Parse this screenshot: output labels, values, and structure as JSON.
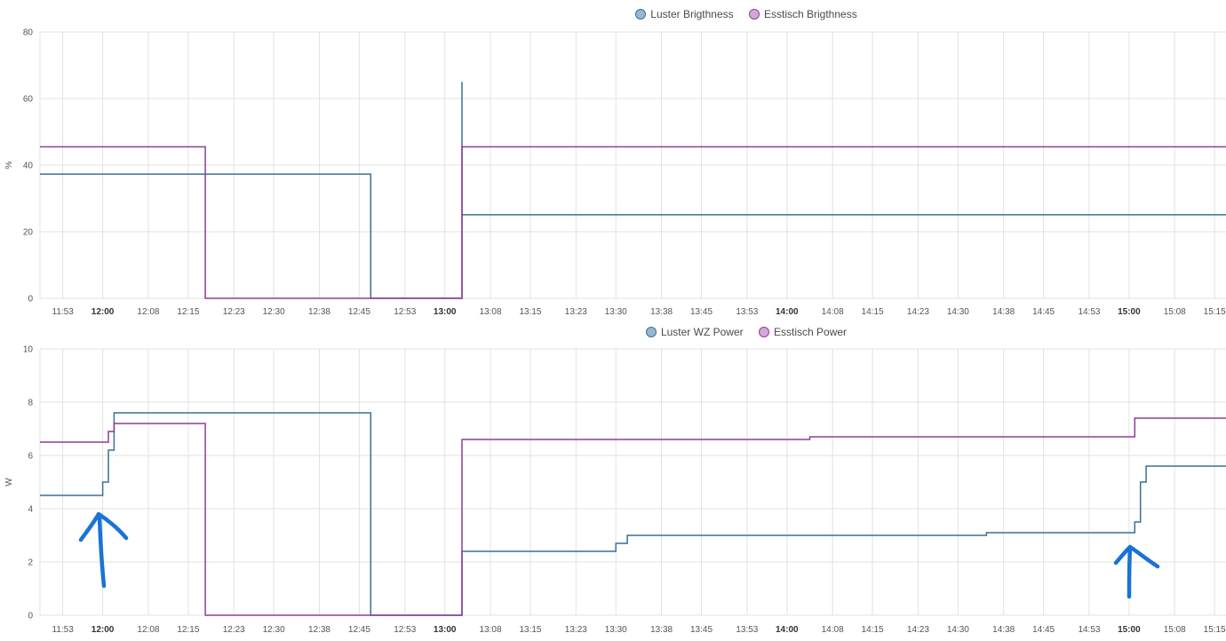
{
  "charts": [
    {
      "type": "line",
      "step": true,
      "ylabel": "%",
      "ylim": [
        0,
        80
      ],
      "yticks": [
        0,
        20,
        40,
        60,
        80
      ],
      "x_range": [
        "11:49",
        "15:17"
      ],
      "x_tick_labels": [
        "11:53",
        "12:00",
        "12:08",
        "12:15",
        "12:23",
        "12:30",
        "12:38",
        "12:45",
        "12:53",
        "13:00",
        "13:08",
        "13:15",
        "13:23",
        "13:30",
        "13:38",
        "13:45",
        "13:53",
        "14:00",
        "14:08",
        "14:15",
        "14:23",
        "14:30",
        "14:38",
        "14:45",
        "14:53",
        "15:00",
        "15:08",
        "15:15"
      ],
      "bold_ticks": [
        "12:00",
        "13:00",
        "14:00",
        "15:00"
      ],
      "legend": "top-center",
      "grid": true,
      "series": [
        {
          "name": "Luster Brigthness",
          "color": "#3b6f95",
          "fill": "#9ab7cf",
          "points": [
            [
              "11:49",
              37.3
            ],
            [
              "12:47",
              37.3
            ],
            [
              "12:47",
              0
            ],
            [
              "13:03",
              0
            ],
            [
              "13:03",
              65
            ],
            [
              "13:03",
              25.1
            ],
            [
              "15:17",
              25.1
            ]
          ]
        },
        {
          "name": "Esstisch Brigthness",
          "color": "#8e3d96",
          "fill": "#d3a8d9",
          "points": [
            [
              "11:49",
              45.5
            ],
            [
              "12:18",
              45.5
            ],
            [
              "12:18",
              0
            ],
            [
              "13:03",
              0
            ],
            [
              "13:03",
              45.5
            ],
            [
              "15:17",
              45.5
            ]
          ]
        }
      ]
    },
    {
      "type": "line",
      "step": true,
      "ylabel": "W",
      "ylim": [
        0,
        10
      ],
      "yticks": [
        0,
        2,
        4,
        6,
        8,
        10
      ],
      "x_range": [
        "11:49",
        "15:17"
      ],
      "x_tick_labels": [
        "11:53",
        "12:00",
        "12:08",
        "12:15",
        "12:23",
        "12:30",
        "12:38",
        "12:45",
        "12:53",
        "13:00",
        "13:08",
        "13:15",
        "13:23",
        "13:30",
        "13:38",
        "13:45",
        "13:53",
        "14:00",
        "14:08",
        "14:15",
        "14:23",
        "14:30",
        "14:38",
        "14:45",
        "14:53",
        "15:00",
        "15:08",
        "15:15"
      ],
      "bold_ticks": [
        "12:00",
        "13:00",
        "14:00",
        "15:00"
      ],
      "legend": "top-center",
      "grid": true,
      "series": [
        {
          "name": "Luster WZ Power",
          "color": "#3b6f95",
          "fill": "#9ab7cf",
          "points": [
            [
              "11:49",
              4.5
            ],
            [
              "12:00",
              4.5
            ],
            [
              "12:00",
              5.0
            ],
            [
              "12:01",
              5.0
            ],
            [
              "12:01",
              5.6
            ],
            [
              "12:01",
              6.2
            ],
            [
              "12:02",
              6.2
            ],
            [
              "12:02",
              6.9
            ],
            [
              "12:02",
              7.6
            ],
            [
              "12:47",
              7.6
            ],
            [
              "12:47",
              0
            ],
            [
              "13:03",
              0
            ],
            [
              "13:03",
              2.4
            ],
            [
              "13:30",
              2.4
            ],
            [
              "13:30",
              2.7
            ],
            [
              "13:32",
              2.7
            ],
            [
              "13:32",
              3.0
            ],
            [
              "14:35",
              3.0
            ],
            [
              "14:35",
              3.1
            ],
            [
              "15:01",
              3.1
            ],
            [
              "15:01",
              3.5
            ],
            [
              "15:02",
              3.5
            ],
            [
              "15:02",
              4.0
            ],
            [
              "15:02",
              4.4
            ],
            [
              "15:02",
              5.0
            ],
            [
              "15:03",
              5.0
            ],
            [
              "15:03",
              5.6
            ],
            [
              "15:17",
              5.6
            ]
          ]
        },
        {
          "name": "Esstisch Power",
          "color": "#8e3d96",
          "fill": "#d3a8d9",
          "points": [
            [
              "11:49",
              6.5
            ],
            [
              "12:01",
              6.5
            ],
            [
              "12:01",
              6.9
            ],
            [
              "12:02",
              6.9
            ],
            [
              "12:02",
              7.2
            ],
            [
              "12:18",
              7.2
            ],
            [
              "12:18",
              4.6
            ],
            [
              "12:18",
              0
            ],
            [
              "13:03",
              0
            ],
            [
              "13:03",
              3.3
            ],
            [
              "13:03",
              6.6
            ],
            [
              "14:04",
              6.6
            ],
            [
              "14:04",
              6.7
            ],
            [
              "15:01",
              6.7
            ],
            [
              "15:01",
              7.4
            ],
            [
              "15:17",
              7.4
            ]
          ]
        }
      ]
    }
  ],
  "annotations": [
    {
      "kind": "hand-drawn-arrow-up",
      "color": "#1a73d6",
      "near_time": "12:00",
      "chart": 2
    },
    {
      "kind": "hand-drawn-arrow-up",
      "color": "#1a73d6",
      "near_time": "15:00",
      "chart": 2
    }
  ]
}
